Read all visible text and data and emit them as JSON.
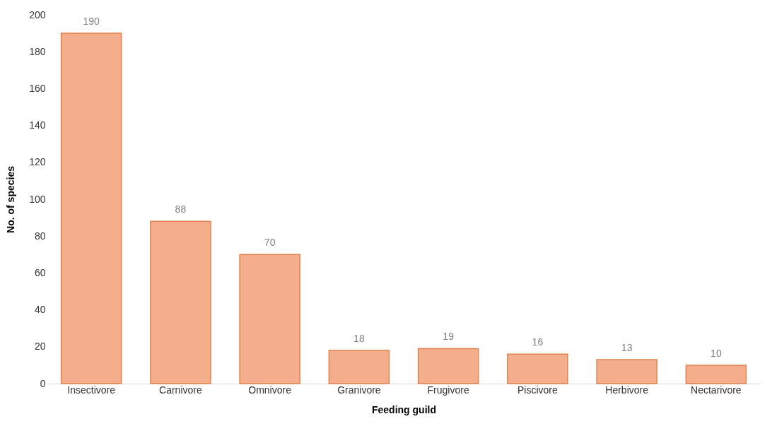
{
  "chart_data": {
    "type": "bar",
    "xlabel": "Feeding guild",
    "ylabel": "No. of species",
    "categories": [
      "Insectivore",
      "Carnivore",
      "Omnivore",
      "Granivore",
      "Frugivore",
      "Piscivore",
      "Herbivore",
      "Nectarivore"
    ],
    "values": [
      190,
      88,
      70,
      18,
      19,
      16,
      13,
      10
    ],
    "color": "#f4ae8c",
    "ylim": [
      0,
      200
    ],
    "yticks": [
      0,
      20,
      40,
      60,
      80,
      100,
      120,
      140,
      160,
      180,
      200
    ],
    "data_labels": true,
    "grid": false
  }
}
